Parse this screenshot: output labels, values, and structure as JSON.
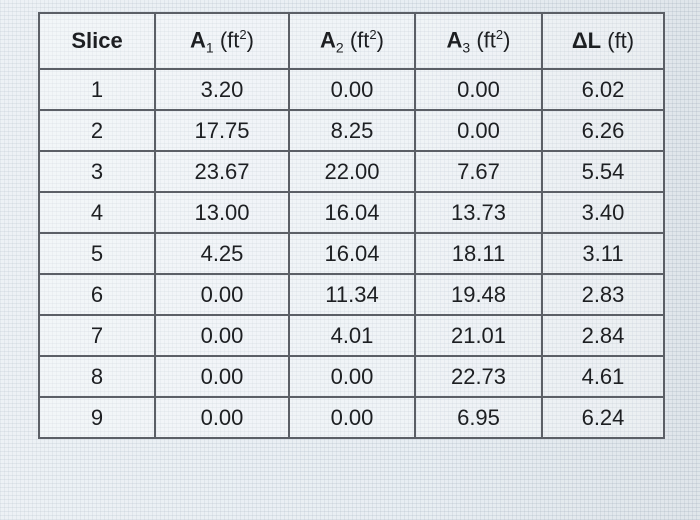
{
  "table": {
    "headers": [
      {
        "main": "Slice",
        "sub": "",
        "unit": "",
        "sup": "",
        "close": ""
      },
      {
        "main": "A",
        "sub": "1",
        "unit": " (ft",
        "sup": "2",
        "close": ")"
      },
      {
        "main": "A",
        "sub": "2",
        "unit": " (ft",
        "sup": "2",
        "close": ")"
      },
      {
        "main": "A",
        "sub": "3",
        "unit": " (ft",
        "sup": "2",
        "close": ")"
      },
      {
        "main": "ΔL",
        "sub": "",
        "unit": " (ft)",
        "sup": "",
        "close": ""
      }
    ],
    "rows": [
      [
        "1",
        "3.20",
        "0.00",
        "0.00",
        "6.02"
      ],
      [
        "2",
        "17.75",
        "8.25",
        "0.00",
        "6.26"
      ],
      [
        "3",
        "23.67",
        "22.00",
        "7.67",
        "5.54"
      ],
      [
        "4",
        "13.00",
        "16.04",
        "13.73",
        "3.40"
      ],
      [
        "5",
        "4.25",
        "16.04",
        "18.11",
        "3.11"
      ],
      [
        "6",
        "0.00",
        "11.34",
        "19.48",
        "2.83"
      ],
      [
        "7",
        "0.00",
        "4.01",
        "21.01",
        "2.84"
      ],
      [
        "8",
        "0.00",
        "0.00",
        "22.73",
        "4.61"
      ],
      [
        "9",
        "0.00",
        "0.00",
        "6.95",
        "6.24"
      ]
    ]
  }
}
